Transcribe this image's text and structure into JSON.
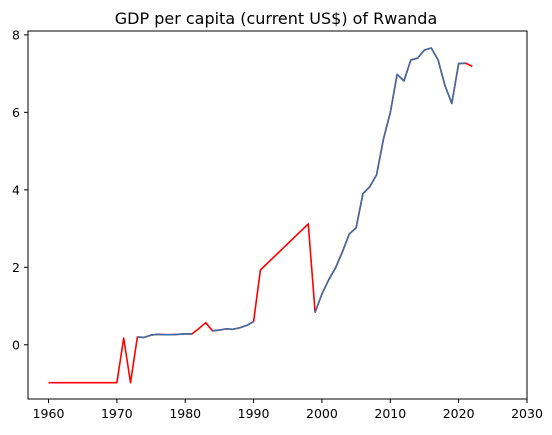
{
  "chart_data": {
    "type": "line",
    "title": "GDP per capita (current US$) of Rwanda",
    "xlabel": "",
    "ylabel": "",
    "xlim": [
      1957,
      2030
    ],
    "ylim": [
      -1.4,
      8.1
    ],
    "xticks": [
      1960,
      1970,
      1980,
      1990,
      2000,
      2010,
      2020,
      2030
    ],
    "yticks": [
      0,
      2,
      4,
      6,
      8
    ],
    "grid": false,
    "series": [
      {
        "color": "#ff0000",
        "x": [
          1960,
          1961,
          1962,
          1963,
          1964,
          1965,
          1966,
          1967,
          1968,
          1969,
          1970,
          1971,
          1972,
          1973,
          1974,
          1975,
          1976,
          1977,
          1978,
          1979,
          1980,
          1981,
          1982,
          1983,
          1984,
          1985,
          1986,
          1987,
          1988,
          1989,
          1990,
          1991,
          1998,
          1999,
          2000,
          2001,
          2002,
          2003,
          2004,
          2005,
          2006,
          2007,
          2008,
          2009,
          2010,
          2011,
          2012,
          2013,
          2014,
          2015,
          2016,
          2017,
          2018,
          2019,
          2020,
          2021,
          2022
        ],
        "y": [
          -0.98,
          -0.98,
          -0.98,
          -0.98,
          -0.98,
          -0.98,
          -0.98,
          -0.98,
          -0.98,
          -0.98,
          -0.98,
          0.17,
          -0.98,
          0.2,
          0.19,
          0.25,
          0.27,
          0.26,
          0.26,
          0.27,
          0.28,
          0.28,
          0.42,
          0.57,
          0.36,
          0.38,
          0.41,
          0.4,
          0.44,
          0.5,
          0.6,
          1.93,
          3.12,
          0.84,
          1.31,
          1.68,
          1.99,
          2.4,
          2.86,
          3.02,
          3.9,
          4.08,
          4.39,
          5.31,
          5.99,
          6.98,
          6.81,
          7.35,
          7.4,
          7.61,
          7.66,
          7.35,
          6.69,
          6.23,
          7.26,
          7.27,
          7.19
        ]
      },
      {
        "color": "#3b6ea5",
        "segments": [
          {
            "x": [
              1973,
              1974,
              1975,
              1976,
              1977,
              1978,
              1979,
              1980,
              1981
            ],
            "y": [
              0.2,
              0.19,
              0.25,
              0.27,
              0.26,
              0.26,
              0.27,
              0.28,
              0.28
            ]
          },
          {
            "x": [
              1984,
              1985,
              1986,
              1987,
              1988,
              1989,
              1990
            ],
            "y": [
              0.36,
              0.38,
              0.41,
              0.4,
              0.44,
              0.5,
              0.6
            ]
          },
          {
            "x": [
              1999,
              2000,
              2001,
              2002,
              2003,
              2004,
              2005,
              2006,
              2007,
              2008,
              2009,
              2010,
              2011,
              2012,
              2013,
              2014,
              2015,
              2016,
              2017,
              2018,
              2019,
              2020,
              2021
            ],
            "y": [
              0.84,
              1.31,
              1.68,
              1.99,
              2.4,
              2.86,
              3.02,
              3.9,
              4.08,
              4.39,
              5.31,
              5.99,
              6.98,
              6.81,
              7.35,
              7.4,
              7.61,
              7.66,
              7.35,
              6.69,
              6.23,
              7.26,
              7.27
            ]
          }
        ]
      }
    ]
  }
}
